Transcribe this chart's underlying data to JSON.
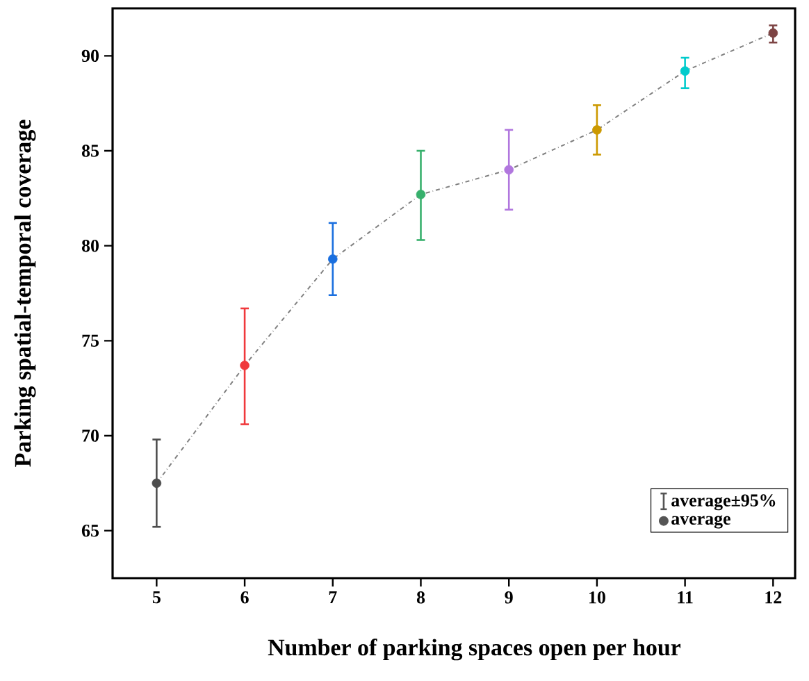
{
  "chart_data": {
    "type": "scatter",
    "xlabel": "Number of parking spaces open per hour",
    "ylabel": "Parking spatial-temporal coverage",
    "annotations": [
      "average±95%"
    ],
    "x": [
      5,
      6,
      7,
      8,
      9,
      10,
      11,
      12
    ],
    "xlim": [
      4.5,
      12.25
    ],
    "xticks": [
      5,
      6,
      7,
      8,
      9,
      10,
      11,
      12
    ],
    "ylim": [
      62.5,
      92.5
    ],
    "yticks": [
      65,
      70,
      75,
      80,
      85,
      90
    ],
    "legend": "bottom right",
    "series": [
      {
        "type": "line",
        "color": "#808080",
        "line_style": "dashdot",
        "marker": "none",
        "values": [
          67.5,
          73.7,
          79.3,
          82.7,
          84.0,
          86.1,
          89.2,
          91.2
        ]
      },
      {
        "name": "average",
        "type": "scatter",
        "marker": "circle",
        "color": "#555555",
        "colors": [
          "#4d4d4d",
          "#f0393c",
          "#1a6fdf",
          "#37b06c",
          "#b177de",
          "#cc9900",
          "#00cbcc",
          "#7d4444"
        ],
        "values": [
          67.5,
          73.7,
          79.3,
          82.7,
          84.0,
          86.1,
          89.2,
          91.2
        ],
        "errors": [
          [
            65.2,
            69.8
          ],
          [
            70.6,
            76.7
          ],
          [
            77.4,
            81.2
          ],
          [
            80.3,
            85.0
          ],
          [
            81.9,
            86.1
          ],
          [
            84.8,
            87.4
          ],
          [
            88.3,
            89.9
          ],
          [
            90.7,
            91.6
          ]
        ]
      }
    ]
  }
}
